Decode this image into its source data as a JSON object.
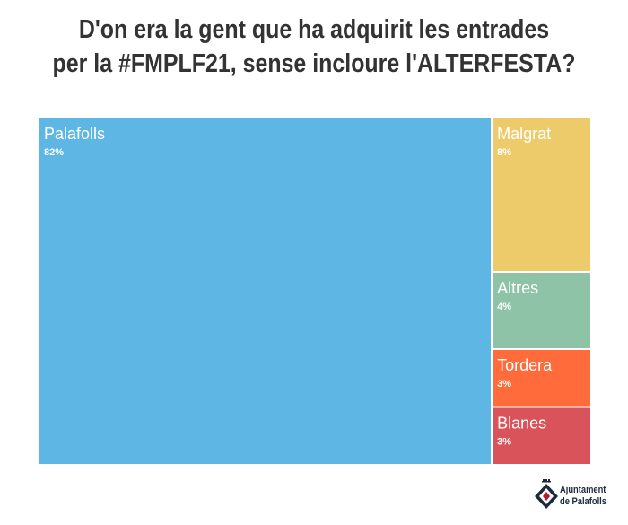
{
  "chart_data": {
    "type": "treemap",
    "title_lines": [
      "D'on era la gent que ha adquirit les entrades",
      "per la #FMPLF21, sense incloure l'ALTERFESTA?"
    ],
    "items": [
      {
        "name": "Palafolls",
        "label": "82%",
        "value": 82,
        "color": "#5eb6e4"
      },
      {
        "name": "Malgrat",
        "label": "8%",
        "value": 8,
        "color": "#eecb6a"
      },
      {
        "name": "Altres",
        "label": "4%",
        "value": 4,
        "color": "#8fc3a7"
      },
      {
        "name": "Tordera",
        "label": "3%",
        "value": 3,
        "color": "#ff6b3a"
      },
      {
        "name": "Blanes",
        "label": "3%",
        "value": 3,
        "color": "#d9545a"
      }
    ]
  },
  "branding": {
    "logo_line1": "Ajuntament",
    "logo_line2": "de Palafolls",
    "logo_colors": {
      "navy": "#1b2a3c",
      "red": "#c8102e"
    }
  }
}
